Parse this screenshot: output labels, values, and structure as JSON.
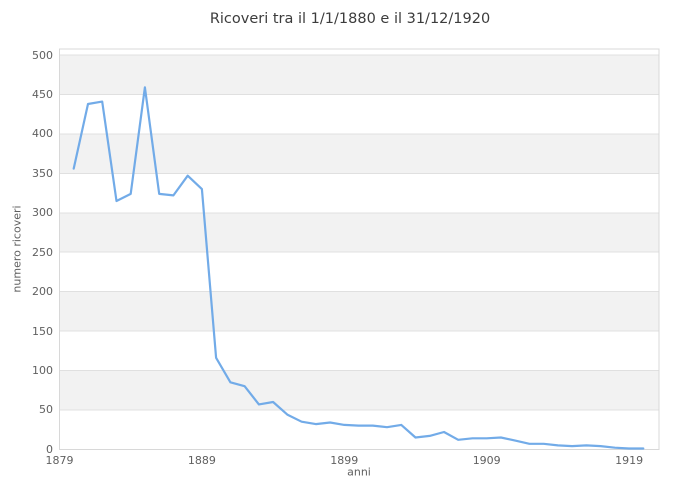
{
  "chart_data": {
    "type": "line",
    "title": "Ricoveri tra il 1/1/1880 e il 31/12/1920",
    "xlabel": "anni",
    "ylabel": "numero ricoveri",
    "x": [
      1880,
      1881,
      1882,
      1883,
      1884,
      1885,
      1886,
      1887,
      1888,
      1889,
      1890,
      1891,
      1892,
      1893,
      1894,
      1895,
      1896,
      1897,
      1898,
      1899,
      1900,
      1901,
      1902,
      1903,
      1904,
      1905,
      1906,
      1907,
      1908,
      1909,
      1910,
      1911,
      1912,
      1913,
      1914,
      1915,
      1916,
      1917,
      1918,
      1919,
      1920
    ],
    "values": [
      356,
      438,
      441,
      315,
      324,
      459,
      324,
      322,
      347,
      330,
      116,
      85,
      80,
      57,
      60,
      44,
      35,
      32,
      34,
      31,
      30,
      30,
      28,
      31,
      15,
      17,
      22,
      12,
      14,
      14,
      15,
      11,
      7,
      7,
      5,
      4,
      5,
      4,
      2,
      1,
      1
    ],
    "x_ticks": [
      1879,
      1889,
      1899,
      1909,
      1919
    ],
    "y_ticks": [
      0,
      50,
      100,
      150,
      200,
      250,
      300,
      350,
      400,
      450,
      500
    ],
    "xlim": [
      1879,
      1921.1
    ],
    "ylim": [
      0,
      500
    ],
    "legend": "none",
    "grid": "horizontal-bands",
    "colors": {
      "line": "#72abe8",
      "band": "#f2f2f2",
      "gridline": "#e0e0e0",
      "plot_border": "#d8d8d8",
      "title": "#3c3c3c",
      "labels": "#606060"
    }
  }
}
